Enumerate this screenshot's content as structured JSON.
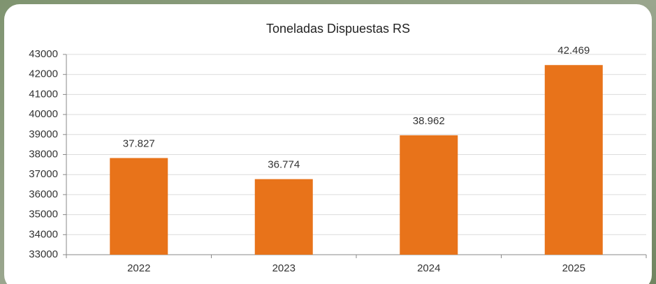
{
  "chart_data": {
    "type": "bar",
    "title": "Toneladas Dispuestas RS",
    "categories": [
      "2022",
      "2023",
      "2024",
      "2025"
    ],
    "values": [
      37827,
      36774,
      38962,
      42469
    ],
    "value_labels": [
      "37.827",
      "36.774",
      "38.962",
      "42.469"
    ],
    "color": "#e8731a",
    "ylim": [
      33000,
      43000
    ],
    "yticks": [
      33000,
      34000,
      35000,
      36000,
      37000,
      38000,
      39000,
      40000,
      41000,
      42000,
      43000
    ],
    "grid": true
  }
}
